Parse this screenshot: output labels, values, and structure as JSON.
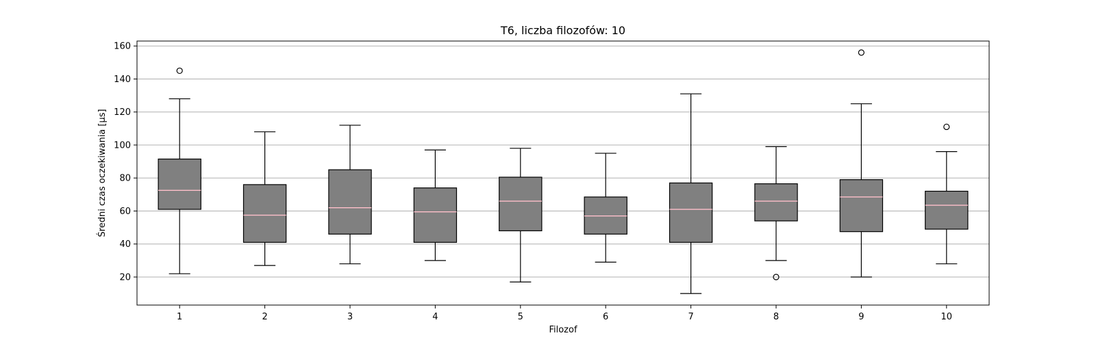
{
  "chart_data": {
    "type": "box",
    "title": "T6, liczba filozofów: 10",
    "xlabel": "Filozof",
    "ylabel": "Średni czas oczekiwania [µs]",
    "ylim": [
      3,
      163
    ],
    "yticks": [
      20,
      40,
      60,
      80,
      100,
      120,
      140,
      160
    ],
    "grid": {
      "y": true,
      "x": false
    },
    "colors": {
      "box_fill": "#808080",
      "box_edge": "#000000",
      "median": "#ffc0cb",
      "grid": "#b0b0b0"
    },
    "categories": [
      "1",
      "2",
      "3",
      "4",
      "5",
      "6",
      "7",
      "8",
      "9",
      "10"
    ],
    "boxes": [
      {
        "whisker_low": 22,
        "q1": 61,
        "median": 72.5,
        "q3": 91.5,
        "whisker_high": 128,
        "outliers": [
          145
        ]
      },
      {
        "whisker_low": 27,
        "q1": 41,
        "median": 57.5,
        "q3": 76,
        "whisker_high": 108,
        "outliers": []
      },
      {
        "whisker_low": 28,
        "q1": 46,
        "median": 62,
        "q3": 85,
        "whisker_high": 112,
        "outliers": []
      },
      {
        "whisker_low": 30,
        "q1": 41,
        "median": 59.5,
        "q3": 74,
        "whisker_high": 97,
        "outliers": []
      },
      {
        "whisker_low": 17,
        "q1": 48,
        "median": 66,
        "q3": 80.5,
        "whisker_high": 98,
        "outliers": []
      },
      {
        "whisker_low": 29,
        "q1": 46,
        "median": 57,
        "q3": 68.5,
        "whisker_high": 95,
        "outliers": []
      },
      {
        "whisker_low": 10,
        "q1": 41,
        "median": 61,
        "q3": 77,
        "whisker_high": 131,
        "outliers": []
      },
      {
        "whisker_low": 30,
        "q1": 54,
        "median": 66,
        "q3": 76.5,
        "whisker_high": 99,
        "outliers": [
          20
        ]
      },
      {
        "whisker_low": 20,
        "q1": 47.5,
        "median": 68.5,
        "q3": 79,
        "whisker_high": 125,
        "outliers": [
          156
        ]
      },
      {
        "whisker_low": 28,
        "q1": 49,
        "median": 63.5,
        "q3": 72,
        "whisker_high": 96,
        "outliers": [
          111
        ]
      }
    ]
  }
}
